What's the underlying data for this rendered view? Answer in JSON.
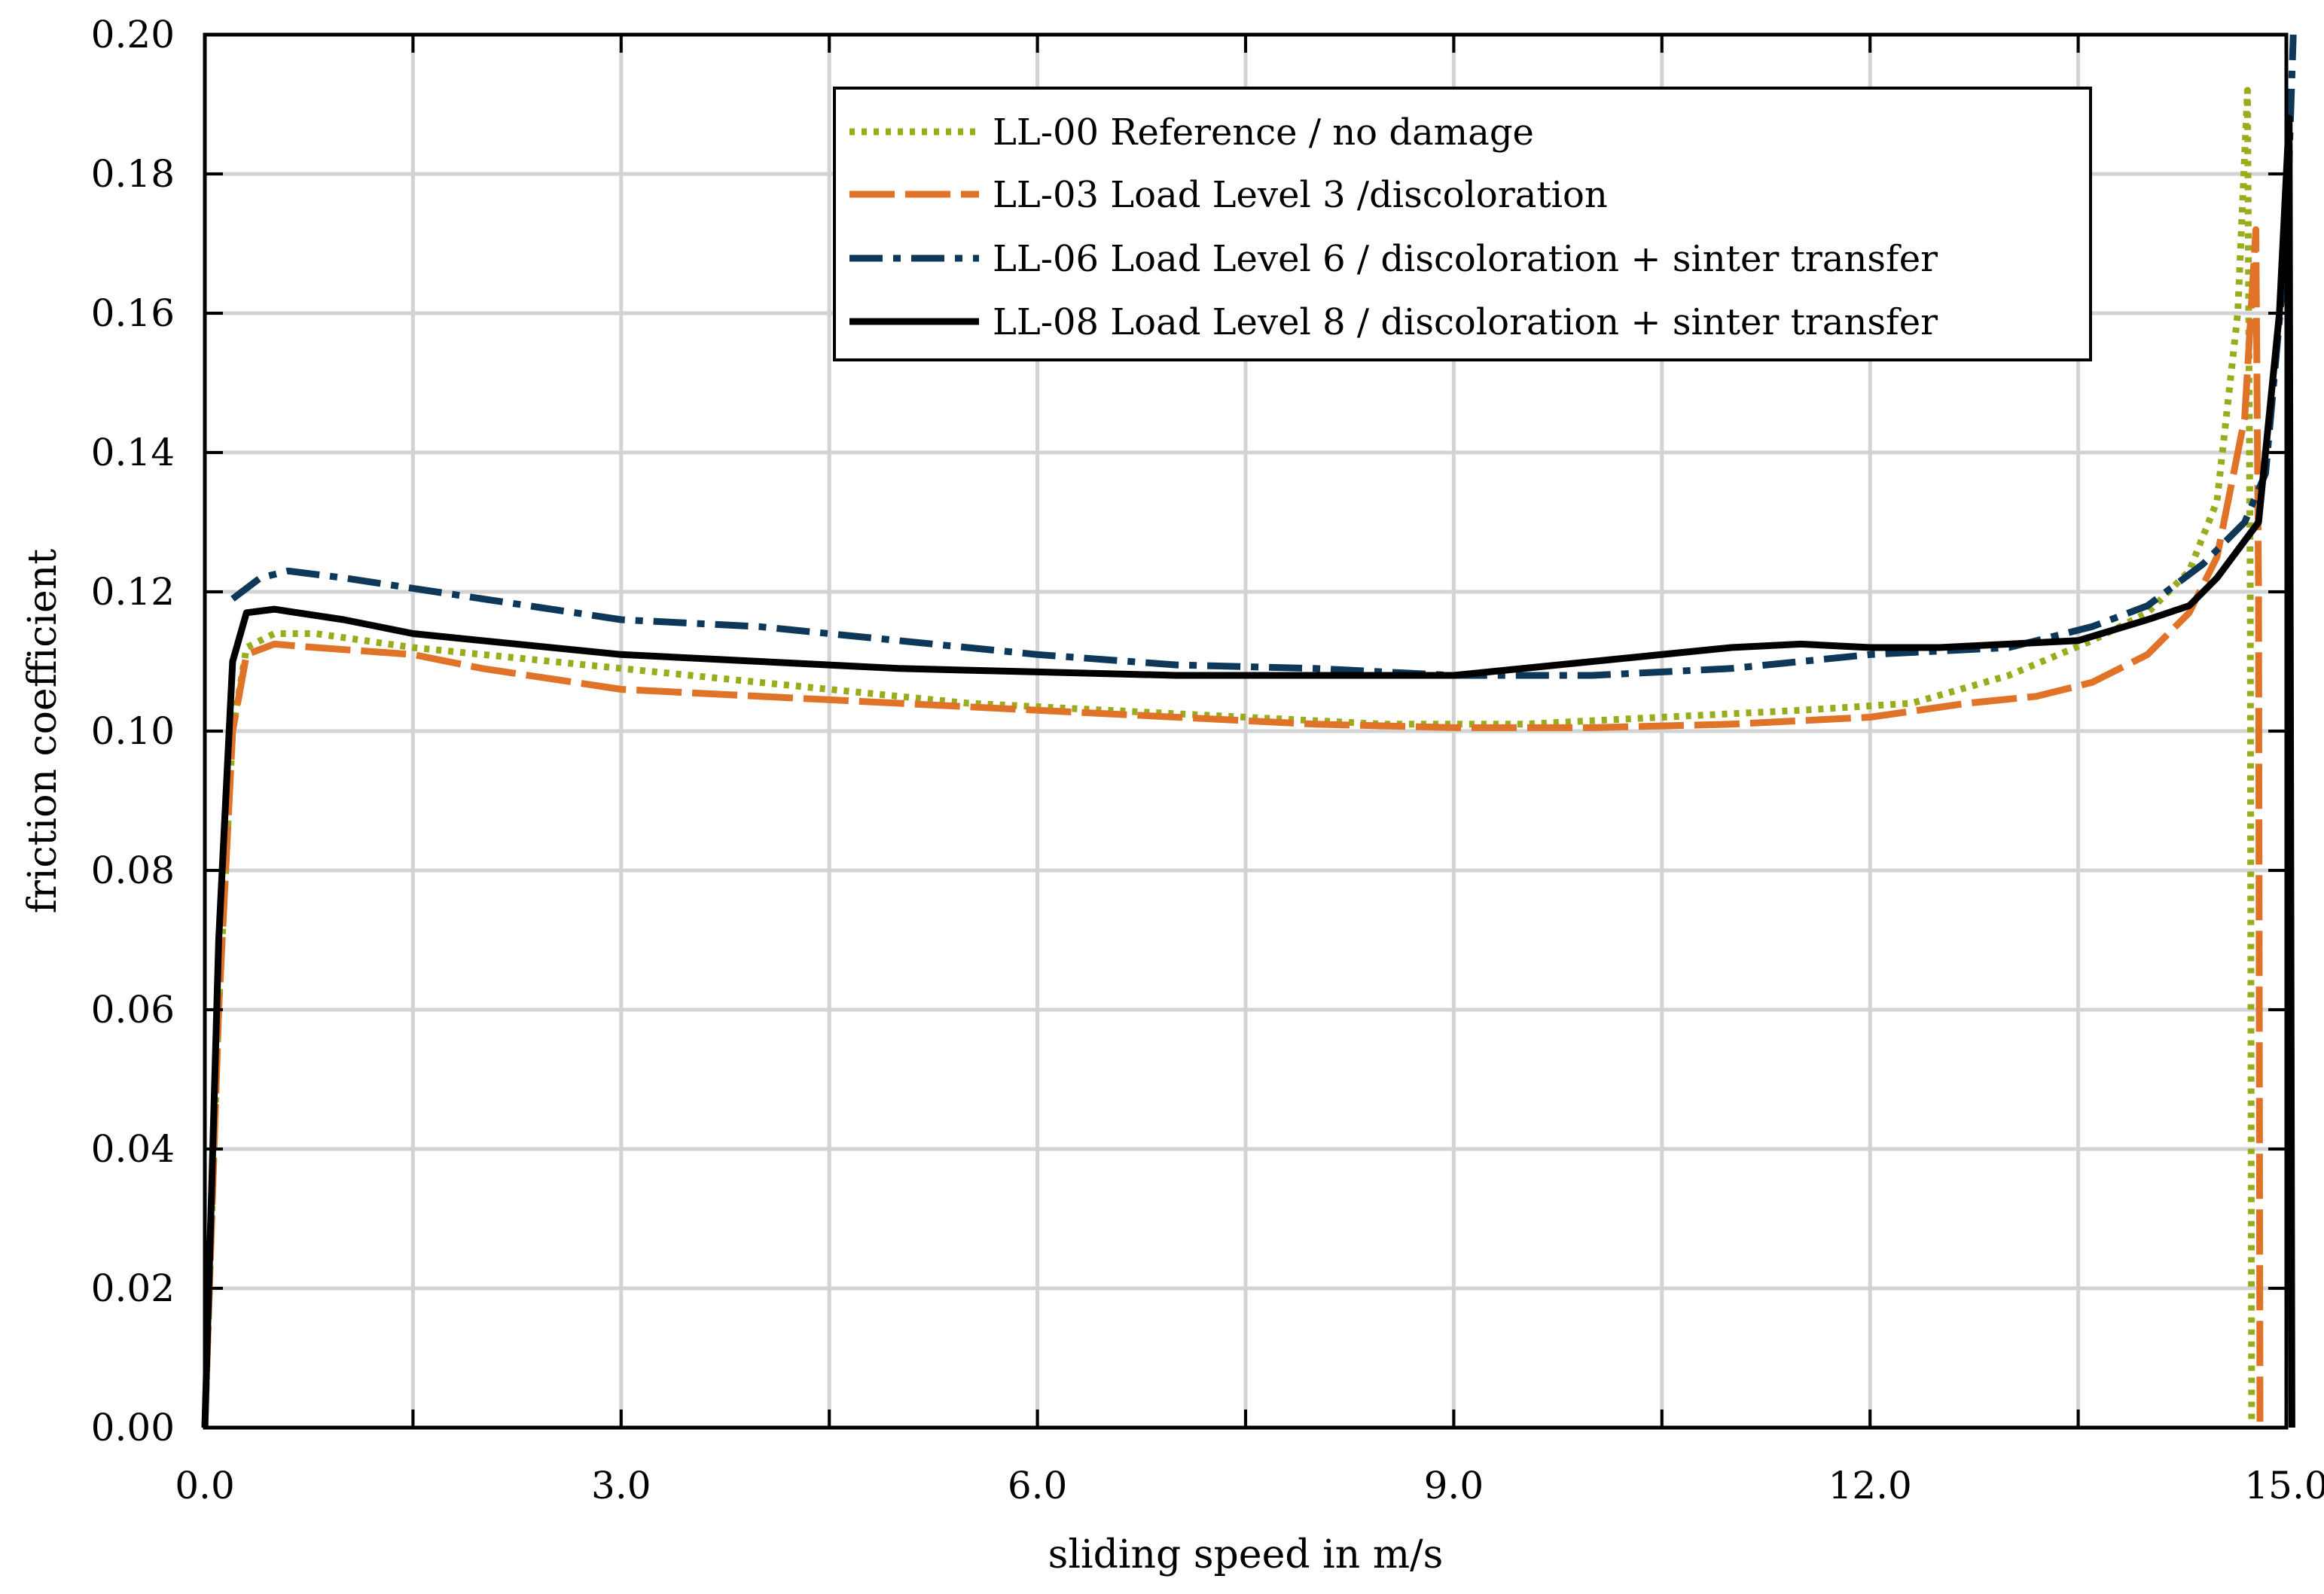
{
  "chart_data": {
    "type": "line",
    "title": "",
    "xlabel": "sliding speed in m/s",
    "ylabel": "friction coefficient",
    "xlim": [
      0,
      15
    ],
    "ylim": [
      0,
      0.2
    ],
    "grid": true,
    "legend_position": "top-right",
    "x_ticks": [
      0,
      1.5,
      3,
      4.5,
      6,
      7.5,
      9,
      10.5,
      12,
      13.5,
      15
    ],
    "x_tick_labels": [
      "0.0",
      "3.0",
      "6.0",
      "9.0",
      "12.0",
      "15.0"
    ],
    "x_tick_label_values": [
      0,
      3,
      6,
      9,
      12,
      15
    ],
    "y_ticks": [
      0,
      0.02,
      0.04,
      0.06,
      0.08,
      0.1,
      0.12,
      0.14,
      0.16,
      0.18,
      0.2
    ],
    "y_tick_labels": [
      "0.00",
      "0.02",
      "0.04",
      "0.06",
      "0.08",
      "0.10",
      "0.12",
      "0.14",
      "0.16",
      "0.18",
      "0.20"
    ],
    "series": [
      {
        "name": "LL-00 Reference / no damage",
        "color": "#9aab1e",
        "style": "dotted",
        "points": [
          [
            0,
            0
          ],
          [
            0.1,
            0.06
          ],
          [
            0.2,
            0.1
          ],
          [
            0.3,
            0.112
          ],
          [
            0.5,
            0.114
          ],
          [
            0.8,
            0.114
          ],
          [
            1.5,
            0.112
          ],
          [
            2.5,
            0.11
          ],
          [
            3.5,
            0.108
          ],
          [
            4.5,
            0.106
          ],
          [
            5.5,
            0.104
          ],
          [
            6.5,
            0.103
          ],
          [
            7.5,
            0.102
          ],
          [
            8.5,
            0.101
          ],
          [
            9.5,
            0.101
          ],
          [
            10.5,
            0.102
          ],
          [
            11.5,
            0.103
          ],
          [
            12.3,
            0.104
          ],
          [
            13,
            0.108
          ],
          [
            13.6,
            0.113
          ],
          [
            14,
            0.117
          ],
          [
            14.3,
            0.123
          ],
          [
            14.5,
            0.133
          ],
          [
            14.65,
            0.16
          ],
          [
            14.72,
            0.192
          ],
          [
            14.74,
            0.12
          ],
          [
            14.75,
            0
          ]
        ]
      },
      {
        "name": "LL-03 Load Level 3 /discoloration",
        "color": "#e07327",
        "style": "long-dash",
        "points": [
          [
            0,
            0
          ],
          [
            0.1,
            0.06
          ],
          [
            0.2,
            0.1
          ],
          [
            0.3,
            0.111
          ],
          [
            0.5,
            0.1125
          ],
          [
            0.8,
            0.112
          ],
          [
            1.5,
            0.111
          ],
          [
            2,
            0.109
          ],
          [
            3,
            0.106
          ],
          [
            4,
            0.105
          ],
          [
            5,
            0.104
          ],
          [
            6,
            0.103
          ],
          [
            7,
            0.102
          ],
          [
            8,
            0.101
          ],
          [
            9,
            0.1005
          ],
          [
            10,
            0.1005
          ],
          [
            11,
            0.101
          ],
          [
            12,
            0.102
          ],
          [
            12.7,
            0.104
          ],
          [
            13.2,
            0.105
          ],
          [
            13.6,
            0.107
          ],
          [
            14,
            0.111
          ],
          [
            14.3,
            0.117
          ],
          [
            14.5,
            0.125
          ],
          [
            14.7,
            0.145
          ],
          [
            14.78,
            0.172
          ],
          [
            14.8,
            0.12
          ],
          [
            14.81,
            0
          ]
        ]
      },
      {
        "name": "LL-06 Load Level 6 / discoloration + sinter transfer",
        "color": "#0d3859",
        "style": "dash-dot",
        "points": [
          [
            0.2,
            0.119
          ],
          [
            0.4,
            0.122
          ],
          [
            0.6,
            0.123
          ],
          [
            1,
            0.122
          ],
          [
            1.5,
            0.1205
          ],
          [
            2,
            0.119
          ],
          [
            3,
            0.116
          ],
          [
            4,
            0.115
          ],
          [
            5,
            0.113
          ],
          [
            6,
            0.111
          ],
          [
            7,
            0.1095
          ],
          [
            8,
            0.109
          ],
          [
            9,
            0.108
          ],
          [
            10,
            0.108
          ],
          [
            11,
            0.109
          ],
          [
            12,
            0.111
          ],
          [
            13,
            0.112
          ],
          [
            13.6,
            0.115
          ],
          [
            14,
            0.118
          ],
          [
            14.4,
            0.124
          ],
          [
            14.7,
            0.13
          ],
          [
            14.85,
            0.137
          ],
          [
            15,
            0.17
          ],
          [
            15.05,
            0.2
          ]
        ]
      },
      {
        "name": "LL-08 Load Level 8 / discoloration + sinter transfer",
        "color": "#000000",
        "style": "solid",
        "points": [
          [
            0,
            0
          ],
          [
            0.1,
            0.07
          ],
          [
            0.2,
            0.11
          ],
          [
            0.3,
            0.117
          ],
          [
            0.5,
            0.1175
          ],
          [
            1,
            0.116
          ],
          [
            1.5,
            0.114
          ],
          [
            2,
            0.113
          ],
          [
            3,
            0.111
          ],
          [
            4,
            0.11
          ],
          [
            5,
            0.109
          ],
          [
            6,
            0.1085
          ],
          [
            7,
            0.108
          ],
          [
            8,
            0.108
          ],
          [
            9,
            0.108
          ],
          [
            10,
            0.11
          ],
          [
            11,
            0.112
          ],
          [
            11.5,
            0.1125
          ],
          [
            12,
            0.112
          ],
          [
            12.5,
            0.112
          ],
          [
            13,
            0.1125
          ],
          [
            13.5,
            0.113
          ],
          [
            14,
            0.116
          ],
          [
            14.3,
            0.118
          ],
          [
            14.5,
            0.122
          ],
          [
            14.8,
            0.13
          ],
          [
            14.95,
            0.16
          ],
          [
            15.02,
            0.188
          ],
          [
            15.03,
            0.1
          ],
          [
            15.04,
            0
          ]
        ]
      }
    ]
  }
}
